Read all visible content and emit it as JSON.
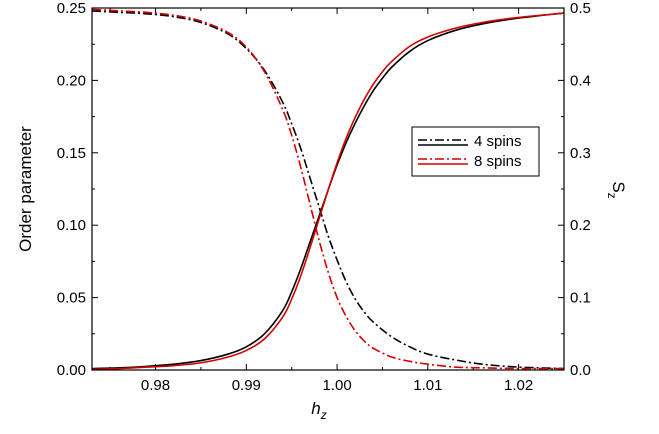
{
  "chart_data": {
    "type": "line",
    "xlabel": "h",
    "xlabel_sub": "z",
    "ylabel_left": "Order parameter",
    "ylabel_right": "S",
    "ylabel_right_sub": "z",
    "xlim": [
      0.973,
      1.025
    ],
    "ylim_left": [
      0,
      0.25
    ],
    "ylim_right": [
      0,
      0.5
    ],
    "x_ticks": [
      0.98,
      0.99,
      1.0,
      1.01,
      1.02
    ],
    "x_tick_labels": [
      "0.98",
      "0.99",
      "1.00",
      "1.01",
      "1.02"
    ],
    "y_left_ticks": [
      0,
      0.05,
      0.1,
      0.15,
      0.2,
      0.25
    ],
    "y_left_tick_labels": [
      "0.00",
      "0.05",
      "0.10",
      "0.15",
      "0.20",
      "0.25"
    ],
    "y_right_ticks": [
      0,
      0.1,
      0.2,
      0.3,
      0.4,
      0.5
    ],
    "y_right_tick_labels": [
      "0.0",
      "0.1",
      "0.2",
      "0.3",
      "0.4",
      "0.5"
    ],
    "grid": false,
    "legend_placement": "right",
    "legend": [
      {
        "label": "4 spins",
        "color": "#000000",
        "style": "dashdot"
      },
      {
        "label": "8 spins",
        "color": "#d40000",
        "style": "dashdot"
      }
    ],
    "series": [
      {
        "legend_index": 0,
        "color": "#000000",
        "style": "dashdot",
        "axis": "left",
        "x": [
          0.973,
          0.976,
          0.979,
          0.982,
          0.985,
          0.988,
          0.99,
          0.992,
          0.994,
          0.995,
          0.996,
          0.997,
          0.998,
          0.999,
          1.0,
          1.001,
          1.002,
          1.003,
          1.004,
          1.006,
          1.008,
          1.01,
          1.013,
          1.016,
          1.02,
          1.025
        ],
        "y": [
          0.248,
          0.247,
          0.246,
          0.244,
          0.24,
          0.232,
          0.222,
          0.207,
          0.185,
          0.17,
          0.153,
          0.133,
          0.113,
          0.093,
          0.076,
          0.061,
          0.049,
          0.04,
          0.033,
          0.023,
          0.016,
          0.011,
          0.007,
          0.004,
          0.002,
          0.001
        ]
      },
      {
        "legend_index": 1,
        "color": "#d40000",
        "style": "dashdot",
        "axis": "left",
        "x": [
          0.973,
          0.976,
          0.979,
          0.982,
          0.985,
          0.988,
          0.99,
          0.992,
          0.994,
          0.995,
          0.996,
          0.997,
          0.998,
          0.999,
          1.0,
          1.001,
          1.002,
          1.003,
          1.004,
          1.006,
          1.008,
          1.01,
          1.013,
          1.016,
          1.02,
          1.025
        ],
        "y": [
          0.249,
          0.248,
          0.247,
          0.245,
          0.241,
          0.233,
          0.223,
          0.206,
          0.18,
          0.162,
          0.14,
          0.115,
          0.09,
          0.068,
          0.05,
          0.037,
          0.027,
          0.02,
          0.015,
          0.009,
          0.006,
          0.004,
          0.002,
          0.0015,
          0.001,
          0.001
        ]
      },
      {
        "legend_index": 0,
        "color": "#000000",
        "style": "solid",
        "axis": "right",
        "x": [
          0.973,
          0.976,
          0.979,
          0.982,
          0.985,
          0.988,
          0.99,
          0.992,
          0.994,
          0.995,
          0.996,
          0.997,
          0.998,
          0.999,
          1.0,
          1.001,
          1.002,
          1.003,
          1.004,
          1.005,
          1.006,
          1.008,
          1.01,
          1.013,
          1.016,
          1.02,
          1.025
        ],
        "y": [
          0.002,
          0.003,
          0.005,
          0.008,
          0.013,
          0.022,
          0.032,
          0.05,
          0.082,
          0.108,
          0.14,
          0.176,
          0.212,
          0.248,
          0.283,
          0.314,
          0.341,
          0.365,
          0.386,
          0.403,
          0.418,
          0.44,
          0.455,
          0.469,
          0.478,
          0.486,
          0.493
        ]
      },
      {
        "legend_index": 1,
        "color": "#d40000",
        "style": "solid",
        "axis": "right",
        "x": [
          0.973,
          0.976,
          0.979,
          0.982,
          0.985,
          0.988,
          0.99,
          0.992,
          0.994,
          0.995,
          0.996,
          0.997,
          0.998,
          0.999,
          1.0,
          1.001,
          1.002,
          1.003,
          1.004,
          1.005,
          1.006,
          1.008,
          1.01,
          1.013,
          1.016,
          1.02,
          1.025
        ],
        "y": [
          0.001,
          0.002,
          0.004,
          0.006,
          0.01,
          0.018,
          0.027,
          0.043,
          0.073,
          0.098,
          0.13,
          0.168,
          0.208,
          0.248,
          0.286,
          0.32,
          0.349,
          0.374,
          0.395,
          0.412,
          0.426,
          0.447,
          0.46,
          0.472,
          0.48,
          0.487,
          0.493
        ]
      }
    ]
  }
}
